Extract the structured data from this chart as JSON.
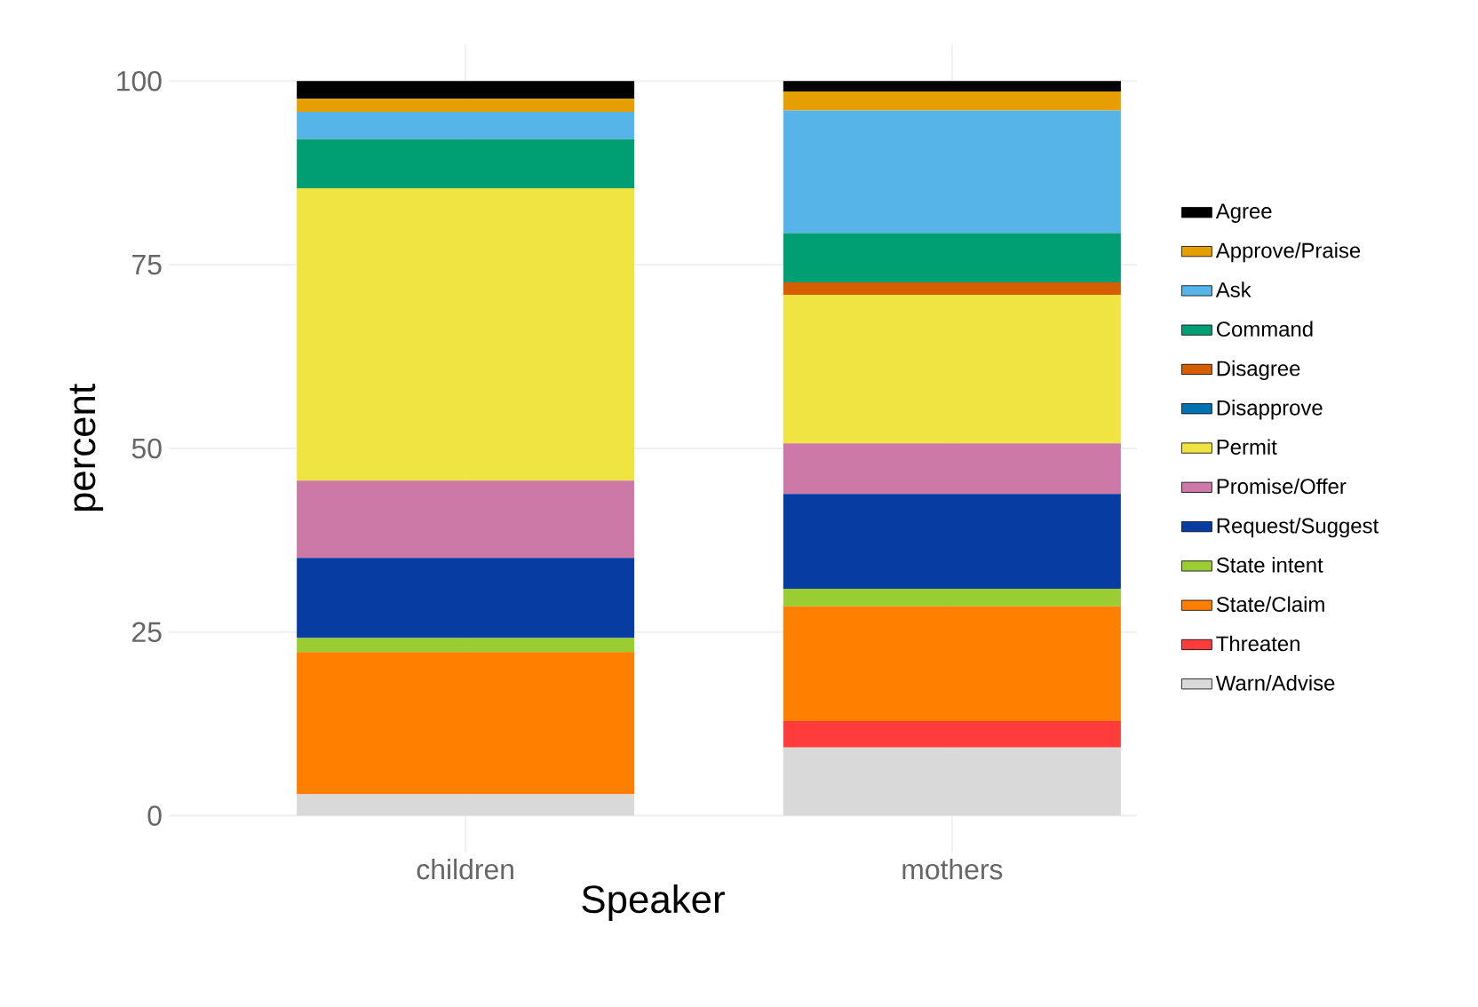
{
  "chart_data": {
    "type": "bar",
    "stacked": true,
    "xlabel": "Speaker",
    "ylabel": "percent",
    "categories": [
      "children",
      "mothers"
    ],
    "series": [
      {
        "name": "Warn/Advise",
        "color": "#d9d9d9",
        "values": [
          2.9,
          9.3
        ]
      },
      {
        "name": "Threaten",
        "color": "#ff3b3b",
        "values": [
          0,
          3.6
        ]
      },
      {
        "name": "State/Claim",
        "color": "#ff8000",
        "values": [
          19.4,
          15.6
        ]
      },
      {
        "name": "State intent",
        "color": "#9acd32",
        "values": [
          1.9,
          2.4
        ]
      },
      {
        "name": "Request/Suggest",
        "color": "#073ca3",
        "values": [
          10.9,
          12.9
        ]
      },
      {
        "name": "Promise/Offer",
        "color": "#cc79a7",
        "values": [
          10.5,
          6.9
        ]
      },
      {
        "name": "Permit",
        "color": "#f0e442",
        "values": [
          39.8,
          20.2
        ]
      },
      {
        "name": "Disapprove",
        "color": "#0072b2",
        "values": [
          0,
          0
        ]
      },
      {
        "name": "Disagree",
        "color": "#d55e00",
        "values": [
          0,
          1.7
        ]
      },
      {
        "name": "Command",
        "color": "#009e73",
        "values": [
          6.7,
          6.7
        ]
      },
      {
        "name": "Ask",
        "color": "#56b4e9",
        "values": [
          3.7,
          16.7
        ]
      },
      {
        "name": "Approve/Praise",
        "color": "#e69f00",
        "values": [
          1.8,
          2.6
        ]
      },
      {
        "name": "Agree",
        "color": "#000000",
        "values": [
          2.4,
          1.4
        ]
      }
    ],
    "ylim": [
      -5,
      105
    ],
    "yticks": [
      0,
      25,
      50,
      75,
      100
    ],
    "grid": true,
    "legend": "right"
  }
}
